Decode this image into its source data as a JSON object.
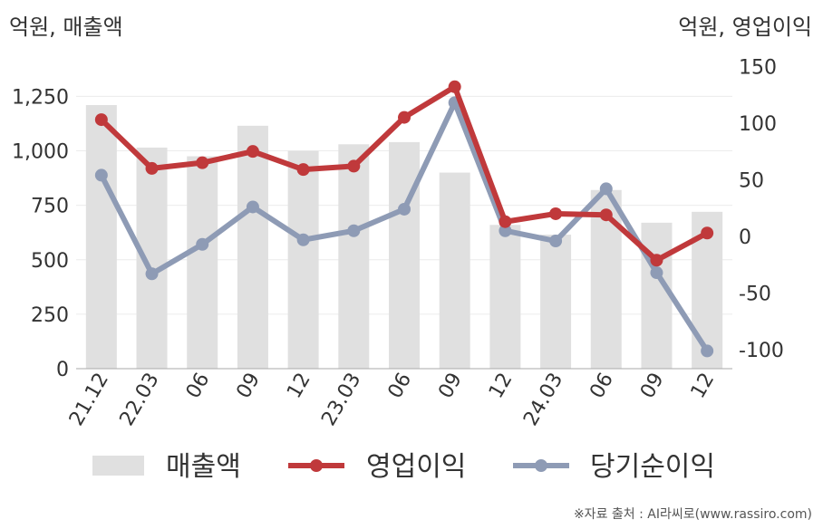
{
  "chart_data": {
    "type": "bar",
    "left_axis_title": "억원, 매출액",
    "right_axis_title": "억원, 영업이익",
    "categories": [
      "21.12",
      "22.03",
      "06",
      "09",
      "12",
      "23.03",
      "06",
      "09",
      "12",
      "24.03",
      "06",
      "09",
      "12"
    ],
    "left_ticks": [
      "0",
      "250",
      "500",
      "750",
      "1,000",
      "1,250"
    ],
    "right_ticks": [
      "-100",
      "-50",
      "0",
      "50",
      "100",
      "150"
    ],
    "left_ylim": [
      0,
      1400
    ],
    "right_ylim": [
      -115,
      160
    ],
    "series": [
      {
        "name": "매출액",
        "type": "bar",
        "axis": "left",
        "color": "#e0e0e0",
        "values": [
          1210,
          1015,
          975,
          1115,
          1000,
          1030,
          1040,
          900,
          660,
          615,
          820,
          670,
          720
        ]
      },
      {
        "name": "영업이익",
        "type": "line",
        "axis": "right",
        "color": "#c0393b",
        "values": [
          103,
          60,
          65,
          75,
          59,
          62,
          105,
          132,
          13,
          20,
          19,
          -21,
          3
        ]
      },
      {
        "name": "당기순이익",
        "type": "line",
        "axis": "right",
        "color": "#8e9bb5",
        "values": [
          54,
          -33,
          -7,
          26,
          -3,
          5,
          24,
          118,
          5,
          -4,
          42,
          -32,
          -101
        ]
      }
    ],
    "source_note": "※자료 출처 : AI라씨로(www.rassiro.com)"
  }
}
